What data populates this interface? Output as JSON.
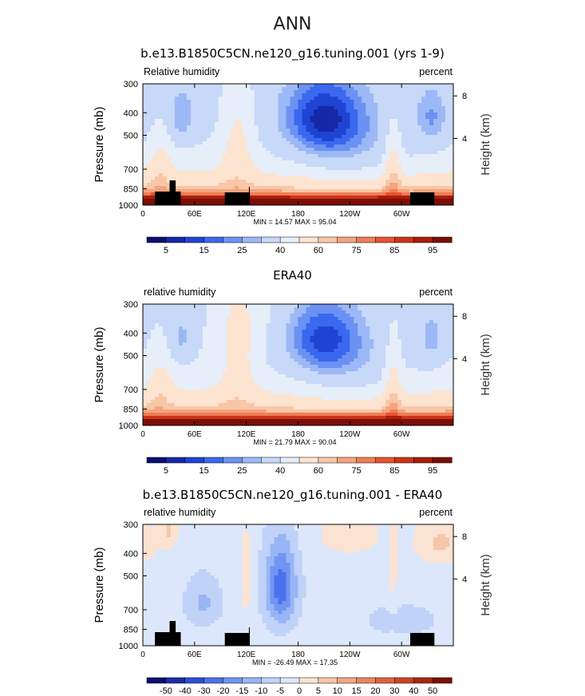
{
  "figure": {
    "title": "ANN"
  },
  "colors": {
    "rh_levels": [
      "#0b0f73",
      "#1528a6",
      "#1f44d4",
      "#3a68ee",
      "#6b92f3",
      "#9cb8f6",
      "#c8d8f8",
      "#e6eefa",
      "#fde4d0",
      "#f8c7a7",
      "#f4a47e",
      "#ef7c56",
      "#e6532f",
      "#cc3419",
      "#a81e0c",
      "#7c0f05"
    ],
    "diff_levels": [
      "#0b0f73",
      "#1a2ea8",
      "#2c4fd8",
      "#4a72ee",
      "#7095f3",
      "#98b5f6",
      "#c0d2f8",
      "#dde7fb",
      "#fbe3d3",
      "#f6c6aa",
      "#f1a885",
      "#ea8660",
      "#e0633d",
      "#cc4424",
      "#a82812",
      "#7c0f05"
    ],
    "topo": "#000000"
  },
  "chart_data": [
    {
      "type": "heatmap",
      "title": "b.e13.B1850C5CN.ne120_g16.tuning.001 (yrs 1-9)",
      "left_label": "Relative humidity",
      "right_label": "percent",
      "ylabel": "Pressure (mb)",
      "right_axis_label": "Height (km)",
      "x_ticks": [
        "0",
        "60E",
        "120E",
        "180",
        "120W",
        "60W"
      ],
      "y_ticks": [
        "300",
        "400",
        "500",
        "700",
        "850",
        "1000"
      ],
      "height_ticks": [
        "8",
        "4"
      ],
      "stats": "MIN =   14.57   MAX =   95.04",
      "colorbar_labels": [
        "5",
        "15",
        "25",
        "40",
        "60",
        "75",
        "85",
        "95"
      ],
      "variant": "model"
    },
    {
      "type": "heatmap",
      "title": "ERA40",
      "left_label": "relative humidity",
      "right_label": "percent",
      "ylabel": "Pressure (mb)",
      "right_axis_label": "Height (km)",
      "x_ticks": [
        "0",
        "60E",
        "120E",
        "180",
        "120W",
        "60W"
      ],
      "y_ticks": [
        "300",
        "400",
        "500",
        "700",
        "850",
        "1000"
      ],
      "height_ticks": [
        "8",
        "4"
      ],
      "stats": "MIN =   21.79   MAX =   90.04",
      "colorbar_labels": [
        "5",
        "15",
        "25",
        "40",
        "60",
        "75",
        "85",
        "95"
      ],
      "variant": "obs"
    },
    {
      "type": "heatmap",
      "title": "b.e13.B1850C5CN.ne120_g16.tuning.001 - ERA40",
      "left_label": "relative humidity",
      "right_label": "percent",
      "ylabel": "Pressure (mb)",
      "right_axis_label": "Height (km)",
      "x_ticks": [
        "0",
        "60E",
        "120E",
        "180",
        "120W",
        "60W"
      ],
      "y_ticks": [
        "300",
        "400",
        "500",
        "700",
        "850",
        "1000"
      ],
      "height_ticks": [
        "8",
        "4"
      ],
      "stats": "MIN = -26.49   MAX =   17.35",
      "colorbar_labels": [
        "-50",
        "-40",
        "-30",
        "-20",
        "-15",
        "-10",
        "-5",
        "0",
        "5",
        "10",
        "15",
        "20",
        "30",
        "40",
        "50"
      ],
      "variant": "diff"
    }
  ]
}
